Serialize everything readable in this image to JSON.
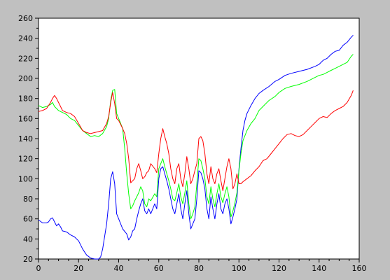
{
  "chart_data": {
    "type": "line",
    "xlim": [
      0,
      160
    ],
    "ylim": [
      20,
      260
    ],
    "x_ticks": [
      0,
      20,
      40,
      60,
      80,
      100,
      120,
      140,
      160
    ],
    "y_ticks": [
      20,
      40,
      60,
      80,
      100,
      120,
      140,
      160,
      180,
      200,
      220,
      240,
      260
    ],
    "grid": false,
    "series": [
      {
        "color": "#0000ff",
        "points": [
          [
            0,
            59
          ],
          [
            2,
            56
          ],
          [
            4,
            56
          ],
          [
            5,
            57
          ],
          [
            6,
            60
          ],
          [
            7,
            61
          ],
          [
            8,
            57
          ],
          [
            9,
            53
          ],
          [
            10,
            55
          ],
          [
            11,
            52
          ],
          [
            12,
            48
          ],
          [
            14,
            47
          ],
          [
            16,
            44
          ],
          [
            18,
            42
          ],
          [
            20,
            38
          ],
          [
            22,
            30
          ],
          [
            24,
            24
          ],
          [
            26,
            21
          ],
          [
            28,
            20
          ],
          [
            30,
            20
          ],
          [
            31,
            22
          ],
          [
            32,
            30
          ],
          [
            34,
            55
          ],
          [
            35,
            75
          ],
          [
            36,
            100
          ],
          [
            37,
            107
          ],
          [
            38,
            95
          ],
          [
            39,
            65
          ],
          [
            40,
            60
          ],
          [
            42,
            50
          ],
          [
            44,
            45
          ],
          [
            45,
            39
          ],
          [
            46,
            42
          ],
          [
            47,
            48
          ],
          [
            48,
            50
          ],
          [
            49,
            60
          ],
          [
            50,
            68
          ],
          [
            51,
            75
          ],
          [
            52,
            80
          ],
          [
            53,
            68
          ],
          [
            54,
            65
          ],
          [
            55,
            70
          ],
          [
            56,
            65
          ],
          [
            58,
            75
          ],
          [
            59,
            70
          ],
          [
            60,
            100
          ],
          [
            61,
            110
          ],
          [
            62,
            112
          ],
          [
            63,
            105
          ],
          [
            64,
            98
          ],
          [
            65,
            90
          ],
          [
            66,
            80
          ],
          [
            67,
            70
          ],
          [
            68,
            65
          ],
          [
            69,
            75
          ],
          [
            70,
            85
          ],
          [
            71,
            70
          ],
          [
            72,
            60
          ],
          [
            73,
            75
          ],
          [
            74,
            88
          ],
          [
            75,
            65
          ],
          [
            76,
            50
          ],
          [
            77,
            55
          ],
          [
            78,
            60
          ],
          [
            79,
            80
          ],
          [
            80,
            108
          ],
          [
            81,
            106
          ],
          [
            82,
            100
          ],
          [
            83,
            90
          ],
          [
            84,
            70
          ],
          [
            85,
            60
          ],
          [
            86,
            82
          ],
          [
            87,
            70
          ],
          [
            88,
            60
          ],
          [
            89,
            75
          ],
          [
            90,
            85
          ],
          [
            91,
            70
          ],
          [
            92,
            65
          ],
          [
            93,
            75
          ],
          [
            94,
            80
          ],
          [
            95,
            70
          ],
          [
            96,
            55
          ],
          [
            97,
            62
          ],
          [
            98,
            70
          ],
          [
            99,
            80
          ],
          [
            100,
            110
          ],
          [
            101,
            130
          ],
          [
            102,
            148
          ],
          [
            103,
            158
          ],
          [
            104,
            165
          ],
          [
            106,
            173
          ],
          [
            108,
            180
          ],
          [
            110,
            185
          ],
          [
            112,
            188
          ],
          [
            115,
            192
          ],
          [
            118,
            197
          ],
          [
            120,
            199
          ],
          [
            123,
            203
          ],
          [
            126,
            205
          ],
          [
            130,
            207
          ],
          [
            134,
            209
          ],
          [
            138,
            212
          ],
          [
            140,
            214
          ],
          [
            142,
            218
          ],
          [
            144,
            220
          ],
          [
            146,
            224
          ],
          [
            148,
            227
          ],
          [
            150,
            228
          ],
          [
            152,
            233
          ],
          [
            154,
            236
          ],
          [
            156,
            241
          ],
          [
            157,
            243
          ]
        ]
      },
      {
        "color": "#00ff00",
        "points": [
          [
            0,
            173
          ],
          [
            2,
            171
          ],
          [
            4,
            172
          ],
          [
            6,
            174
          ],
          [
            7,
            176
          ],
          [
            8,
            172
          ],
          [
            10,
            168
          ],
          [
            12,
            166
          ],
          [
            14,
            164
          ],
          [
            16,
            160
          ],
          [
            18,
            158
          ],
          [
            20,
            153
          ],
          [
            22,
            148
          ],
          [
            24,
            145
          ],
          [
            26,
            142
          ],
          [
            28,
            143
          ],
          [
            30,
            142
          ],
          [
            32,
            145
          ],
          [
            34,
            152
          ],
          [
            35,
            160
          ],
          [
            36,
            178
          ],
          [
            37,
            188
          ],
          [
            38,
            189
          ],
          [
            39,
            165
          ],
          [
            40,
            160
          ],
          [
            41,
            155
          ],
          [
            42,
            150
          ],
          [
            43,
            130
          ],
          [
            44,
            105
          ],
          [
            45,
            85
          ],
          [
            46,
            70
          ],
          [
            47,
            73
          ],
          [
            48,
            78
          ],
          [
            49,
            82
          ],
          [
            50,
            86
          ],
          [
            51,
            92
          ],
          [
            52,
            88
          ],
          [
            53,
            75
          ],
          [
            54,
            72
          ],
          [
            55,
            80
          ],
          [
            56,
            78
          ],
          [
            58,
            85
          ],
          [
            59,
            82
          ],
          [
            60,
            110
          ],
          [
            61,
            115
          ],
          [
            62,
            120
          ],
          [
            63,
            112
          ],
          [
            64,
            105
          ],
          [
            65,
            98
          ],
          [
            66,
            90
          ],
          [
            67,
            80
          ],
          [
            68,
            78
          ],
          [
            69,
            86
          ],
          [
            70,
            95
          ],
          [
            71,
            82
          ],
          [
            72,
            75
          ],
          [
            73,
            86
          ],
          [
            74,
            98
          ],
          [
            75,
            75
          ],
          [
            76,
            60
          ],
          [
            77,
            65
          ],
          [
            78,
            72
          ],
          [
            79,
            95
          ],
          [
            80,
            120
          ],
          [
            81,
            118
          ],
          [
            82,
            110
          ],
          [
            83,
            100
          ],
          [
            84,
            82
          ],
          [
            85,
            75
          ],
          [
            86,
            92
          ],
          [
            87,
            80
          ],
          [
            88,
            72
          ],
          [
            89,
            85
          ],
          [
            90,
            95
          ],
          [
            91,
            82
          ],
          [
            92,
            76
          ],
          [
            93,
            85
          ],
          [
            94,
            92
          ],
          [
            95,
            82
          ],
          [
            96,
            62
          ],
          [
            97,
            68
          ],
          [
            98,
            76
          ],
          [
            99,
            86
          ],
          [
            100,
            108
          ],
          [
            101,
            125
          ],
          [
            102,
            138
          ],
          [
            104,
            148
          ],
          [
            106,
            155
          ],
          [
            108,
            160
          ],
          [
            110,
            168
          ],
          [
            112,
            172
          ],
          [
            115,
            178
          ],
          [
            118,
            182
          ],
          [
            120,
            186
          ],
          [
            123,
            190
          ],
          [
            126,
            192
          ],
          [
            130,
            194
          ],
          [
            134,
            197
          ],
          [
            138,
            201
          ],
          [
            140,
            203
          ],
          [
            142,
            204
          ],
          [
            144,
            206
          ],
          [
            146,
            208
          ],
          [
            148,
            210
          ],
          [
            150,
            212
          ],
          [
            152,
            214
          ],
          [
            154,
            216
          ],
          [
            156,
            222
          ],
          [
            157,
            224
          ]
        ]
      },
      {
        "color": "#ff0000",
        "points": [
          [
            0,
            167
          ],
          [
            2,
            168
          ],
          [
            4,
            170
          ],
          [
            6,
            176
          ],
          [
            7,
            180
          ],
          [
            8,
            183
          ],
          [
            9,
            180
          ],
          [
            10,
            176
          ],
          [
            12,
            168
          ],
          [
            14,
            166
          ],
          [
            16,
            165
          ],
          [
            18,
            162
          ],
          [
            20,
            155
          ],
          [
            22,
            148
          ],
          [
            24,
            146
          ],
          [
            26,
            145
          ],
          [
            28,
            146
          ],
          [
            30,
            147
          ],
          [
            32,
            148
          ],
          [
            34,
            155
          ],
          [
            35,
            162
          ],
          [
            36,
            176
          ],
          [
            37,
            186
          ],
          [
            38,
            175
          ],
          [
            39,
            160
          ],
          [
            40,
            158
          ],
          [
            41,
            154
          ],
          [
            42,
            150
          ],
          [
            43,
            145
          ],
          [
            44,
            135
          ],
          [
            45,
            120
          ],
          [
            46,
            96
          ],
          [
            47,
            98
          ],
          [
            48,
            100
          ],
          [
            49,
            110
          ],
          [
            50,
            115
          ],
          [
            51,
            108
          ],
          [
            52,
            100
          ],
          [
            53,
            102
          ],
          [
            54,
            106
          ],
          [
            55,
            108
          ],
          [
            56,
            115
          ],
          [
            58,
            110
          ],
          [
            59,
            106
          ],
          [
            60,
            125
          ],
          [
            61,
            140
          ],
          [
            62,
            150
          ],
          [
            63,
            142
          ],
          [
            64,
            135
          ],
          [
            65,
            125
          ],
          [
            66,
            110
          ],
          [
            67,
            100
          ],
          [
            68,
            95
          ],
          [
            69,
            110
          ],
          [
            70,
            115
          ],
          [
            71,
            100
          ],
          [
            72,
            92
          ],
          [
            73,
            105
          ],
          [
            74,
            122
          ],
          [
            75,
            110
          ],
          [
            76,
            95
          ],
          [
            77,
            100
          ],
          [
            78,
            108
          ],
          [
            79,
            115
          ],
          [
            80,
            140
          ],
          [
            81,
            142
          ],
          [
            82,
            138
          ],
          [
            83,
            125
          ],
          [
            84,
            105
          ],
          [
            85,
            95
          ],
          [
            86,
            112
          ],
          [
            87,
            100
          ],
          [
            88,
            95
          ],
          [
            89,
            105
          ],
          [
            90,
            110
          ],
          [
            91,
            98
          ],
          [
            92,
            88
          ],
          [
            93,
            100
          ],
          [
            94,
            112
          ],
          [
            95,
            120
          ],
          [
            96,
            110
          ],
          [
            97,
            90
          ],
          [
            98,
            95
          ],
          [
            99,
            105
          ],
          [
            100,
            95
          ],
          [
            101,
            95
          ],
          [
            102,
            97
          ],
          [
            104,
            100
          ],
          [
            106,
            103
          ],
          [
            108,
            108
          ],
          [
            110,
            112
          ],
          [
            112,
            118
          ],
          [
            114,
            120
          ],
          [
            116,
            125
          ],
          [
            118,
            130
          ],
          [
            120,
            135
          ],
          [
            122,
            140
          ],
          [
            124,
            144
          ],
          [
            126,
            145
          ],
          [
            128,
            143
          ],
          [
            130,
            142
          ],
          [
            132,
            144
          ],
          [
            134,
            148
          ],
          [
            136,
            152
          ],
          [
            138,
            156
          ],
          [
            140,
            160
          ],
          [
            142,
            162
          ],
          [
            144,
            161
          ],
          [
            146,
            165
          ],
          [
            148,
            168
          ],
          [
            150,
            170
          ],
          [
            152,
            172
          ],
          [
            154,
            176
          ],
          [
            156,
            183
          ],
          [
            157,
            188
          ]
        ]
      }
    ]
  }
}
